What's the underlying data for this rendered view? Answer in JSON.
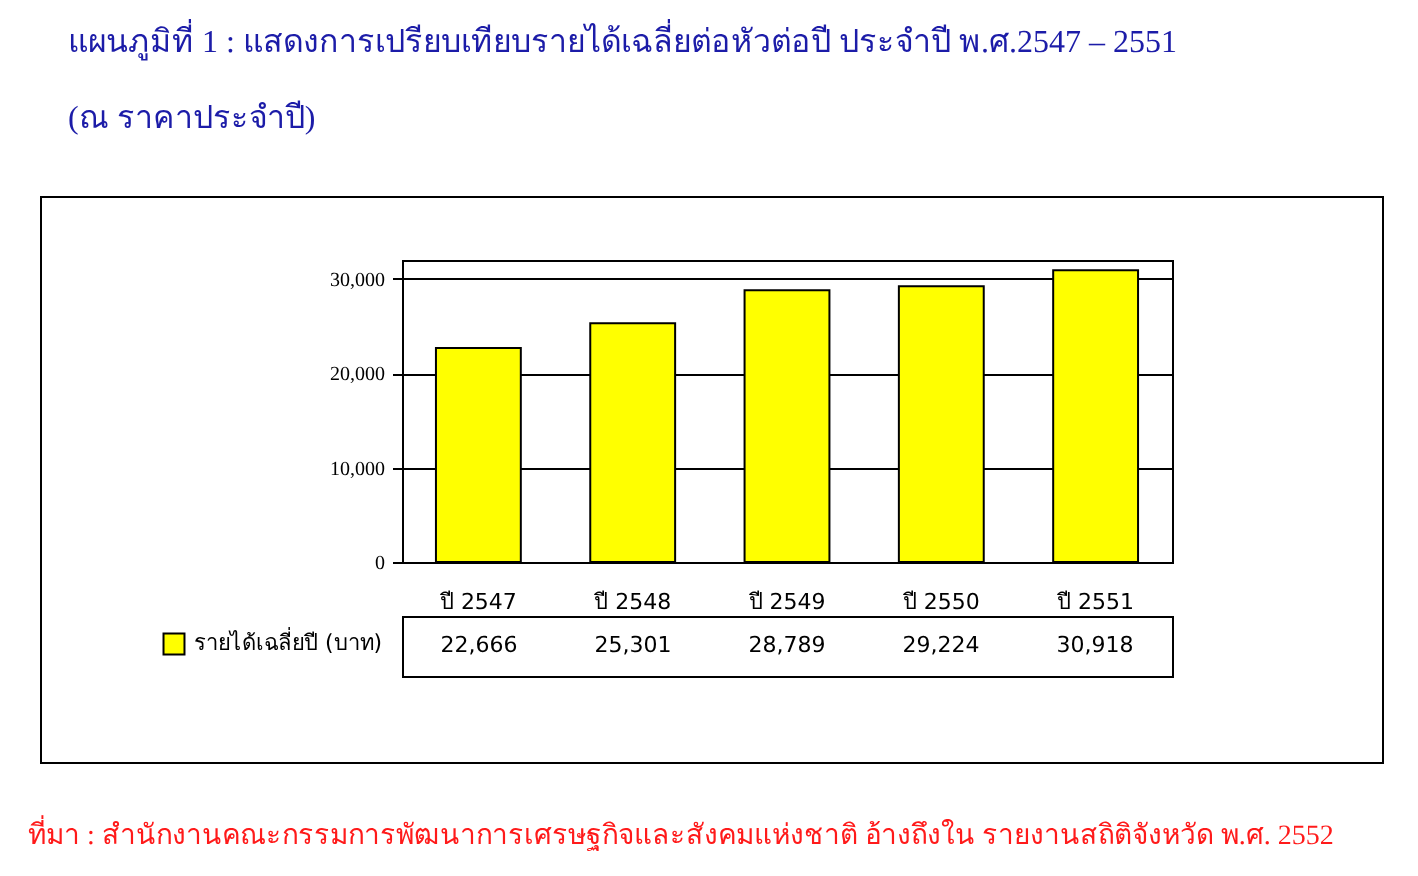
{
  "chart_data": {
    "type": "bar",
    "title": "แผนภูมิที่ 1 :  แสดงการเปรียบเทียบรายได้เฉลี่ยต่อหัวต่อปี  ประจำปี พ.ศ.2547 – 2551",
    "subtitle": "(ณ  ราคาประจำปี)",
    "annotations": [
      "ที่มา : สำนักงานคณะกรรมการพัฒนาการเศรษฐกิจและสังคมแห่งชาติ  อ้างถึงใน รายงานสถิติจังหวัด พ.ศ. 2552"
    ],
    "categories": [
      "ปี  2547",
      "ปี  2548",
      "ปี  2549",
      "ปี 2550",
      "ปี 2551"
    ],
    "series": [
      {
        "name": "รายได้เฉลี่ยปี (บาท)",
        "color": "#ffff00",
        "values": [
          22666,
          25301,
          28789,
          29224,
          30918
        ],
        "value_labels": [
          "22,666",
          "25,301",
          "28,789",
          "29,224",
          "30,918"
        ]
      }
    ],
    "ylim": [
      0,
      32000
    ],
    "yticks": [
      0,
      {
        "value": 10000,
        "label": "10,000"
      },
      {
        "value": 20000,
        "label": "20,000"
      },
      {
        "value": 30000,
        "label": "30,000"
      }
    ],
    "grid": "y",
    "legend": "bottom left"
  }
}
